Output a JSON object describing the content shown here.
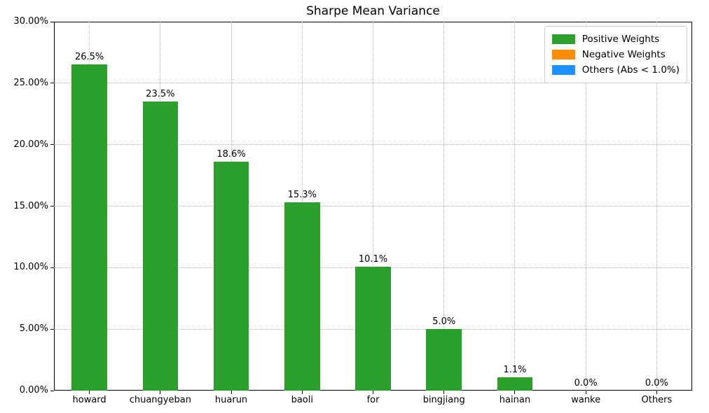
{
  "chart_data": {
    "type": "bar",
    "title": "Sharpe Mean Variance",
    "categories": [
      "howard",
      "chuangyeban",
      "huarun",
      "baoli",
      "for",
      "bingjiang",
      "hainan",
      "wanke",
      "Others"
    ],
    "values": [
      26.5,
      23.5,
      18.6,
      15.3,
      10.1,
      5.0,
      1.1,
      0.0,
      0.0
    ],
    "bar_value_labels": [
      "26.5%",
      "23.5%",
      "18.6%",
      "15.3%",
      "10.1%",
      "5.0%",
      "1.1%",
      "0.0%",
      "0.0%"
    ],
    "xlabel": "",
    "ylabel": "",
    "ylim": [
      0,
      30
    ],
    "ytick_values": [
      0,
      5,
      10,
      15,
      20,
      25,
      30
    ],
    "ytick_labels": [
      "0.00%",
      "5.00%",
      "10.00%",
      "15.00%",
      "20.00%",
      "25.00%",
      "30.00%"
    ],
    "grid": true,
    "bar_color": "#2ca02c",
    "grid_color": "#b0b0b0",
    "legend": {
      "position": "top-right",
      "items": [
        {
          "label": "Positive Weights",
          "color": "#2ca02c"
        },
        {
          "label": "Negative Weights",
          "color": "#ff8c00"
        },
        {
          "label": "Others (Abs < 1.0%)",
          "color": "#1e90ff"
        }
      ]
    }
  }
}
